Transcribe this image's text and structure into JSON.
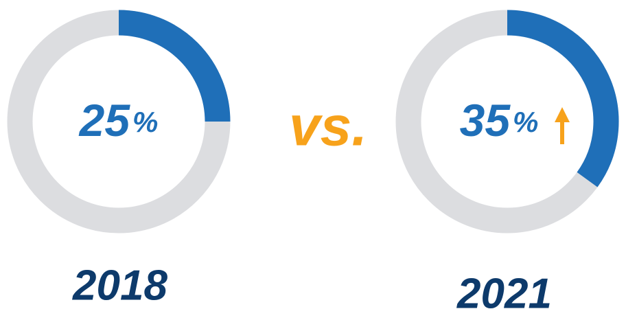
{
  "chart_data": [
    {
      "type": "donut",
      "title": "2018",
      "values": [
        25
      ],
      "value_labels": [
        "25%"
      ],
      "color": "#1f6fb8",
      "track_color": "#dcdde0"
    },
    {
      "type": "donut",
      "title": "2021",
      "values": [
        35
      ],
      "value_labels": [
        "35%"
      ],
      "color": "#1f6fb8",
      "track_color": "#dcdde0"
    }
  ],
  "comparison_label": "vs."
}
